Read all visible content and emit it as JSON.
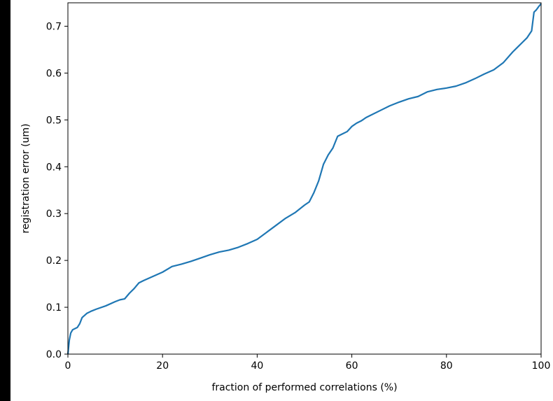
{
  "chart_data": {
    "type": "line",
    "title": "",
    "xlabel": "fraction of performed correlations (%)",
    "ylabel": "registration error (um)",
    "xlim": [
      0,
      100
    ],
    "ylim": [
      0,
      0.75
    ],
    "xticks": [
      0,
      20,
      40,
      60,
      80,
      100
    ],
    "xtick_labels": [
      "0",
      "20",
      "40",
      "60",
      "80",
      "100"
    ],
    "yticks": [
      0.0,
      0.1,
      0.2,
      0.3,
      0.4,
      0.5,
      0.6,
      0.7
    ],
    "ytick_labels": [
      "0.0",
      "0.1",
      "0.2",
      "0.3",
      "0.4",
      "0.5",
      "0.6",
      "0.7"
    ],
    "grid": false,
    "legend": "none",
    "series": [
      {
        "color": "#1f77b4",
        "x": [
          0,
          0.3,
          0.6,
          1,
          2,
          2.5,
          3,
          4,
          5,
          6,
          8,
          10,
          11,
          12,
          13,
          14,
          15,
          16,
          18,
          20,
          22,
          24,
          26,
          28,
          30,
          32,
          34,
          36,
          38,
          40,
          42,
          44,
          46,
          48,
          50,
          51,
          52,
          53,
          54,
          55,
          56,
          57,
          58,
          59,
          60,
          61,
          62,
          63,
          64,
          66,
          68,
          70,
          72,
          74,
          76,
          78,
          80,
          82,
          84,
          86,
          88,
          90,
          92,
          94,
          95,
          96,
          97,
          98,
          98.5,
          99,
          99.5,
          100
        ],
        "y": [
          0.0,
          0.03,
          0.045,
          0.052,
          0.057,
          0.065,
          0.078,
          0.087,
          0.092,
          0.096,
          0.103,
          0.112,
          0.116,
          0.118,
          0.13,
          0.14,
          0.152,
          0.157,
          0.166,
          0.175,
          0.187,
          0.192,
          0.198,
          0.205,
          0.212,
          0.218,
          0.222,
          0.228,
          0.236,
          0.245,
          0.26,
          0.275,
          0.29,
          0.302,
          0.318,
          0.325,
          0.345,
          0.37,
          0.405,
          0.425,
          0.44,
          0.465,
          0.47,
          0.475,
          0.486,
          0.493,
          0.498,
          0.505,
          0.51,
          0.52,
          0.53,
          0.538,
          0.545,
          0.55,
          0.56,
          0.565,
          0.568,
          0.572,
          0.579,
          0.588,
          0.598,
          0.607,
          0.622,
          0.645,
          0.655,
          0.665,
          0.675,
          0.69,
          0.73,
          0.735,
          0.742,
          0.748
        ]
      }
    ]
  }
}
